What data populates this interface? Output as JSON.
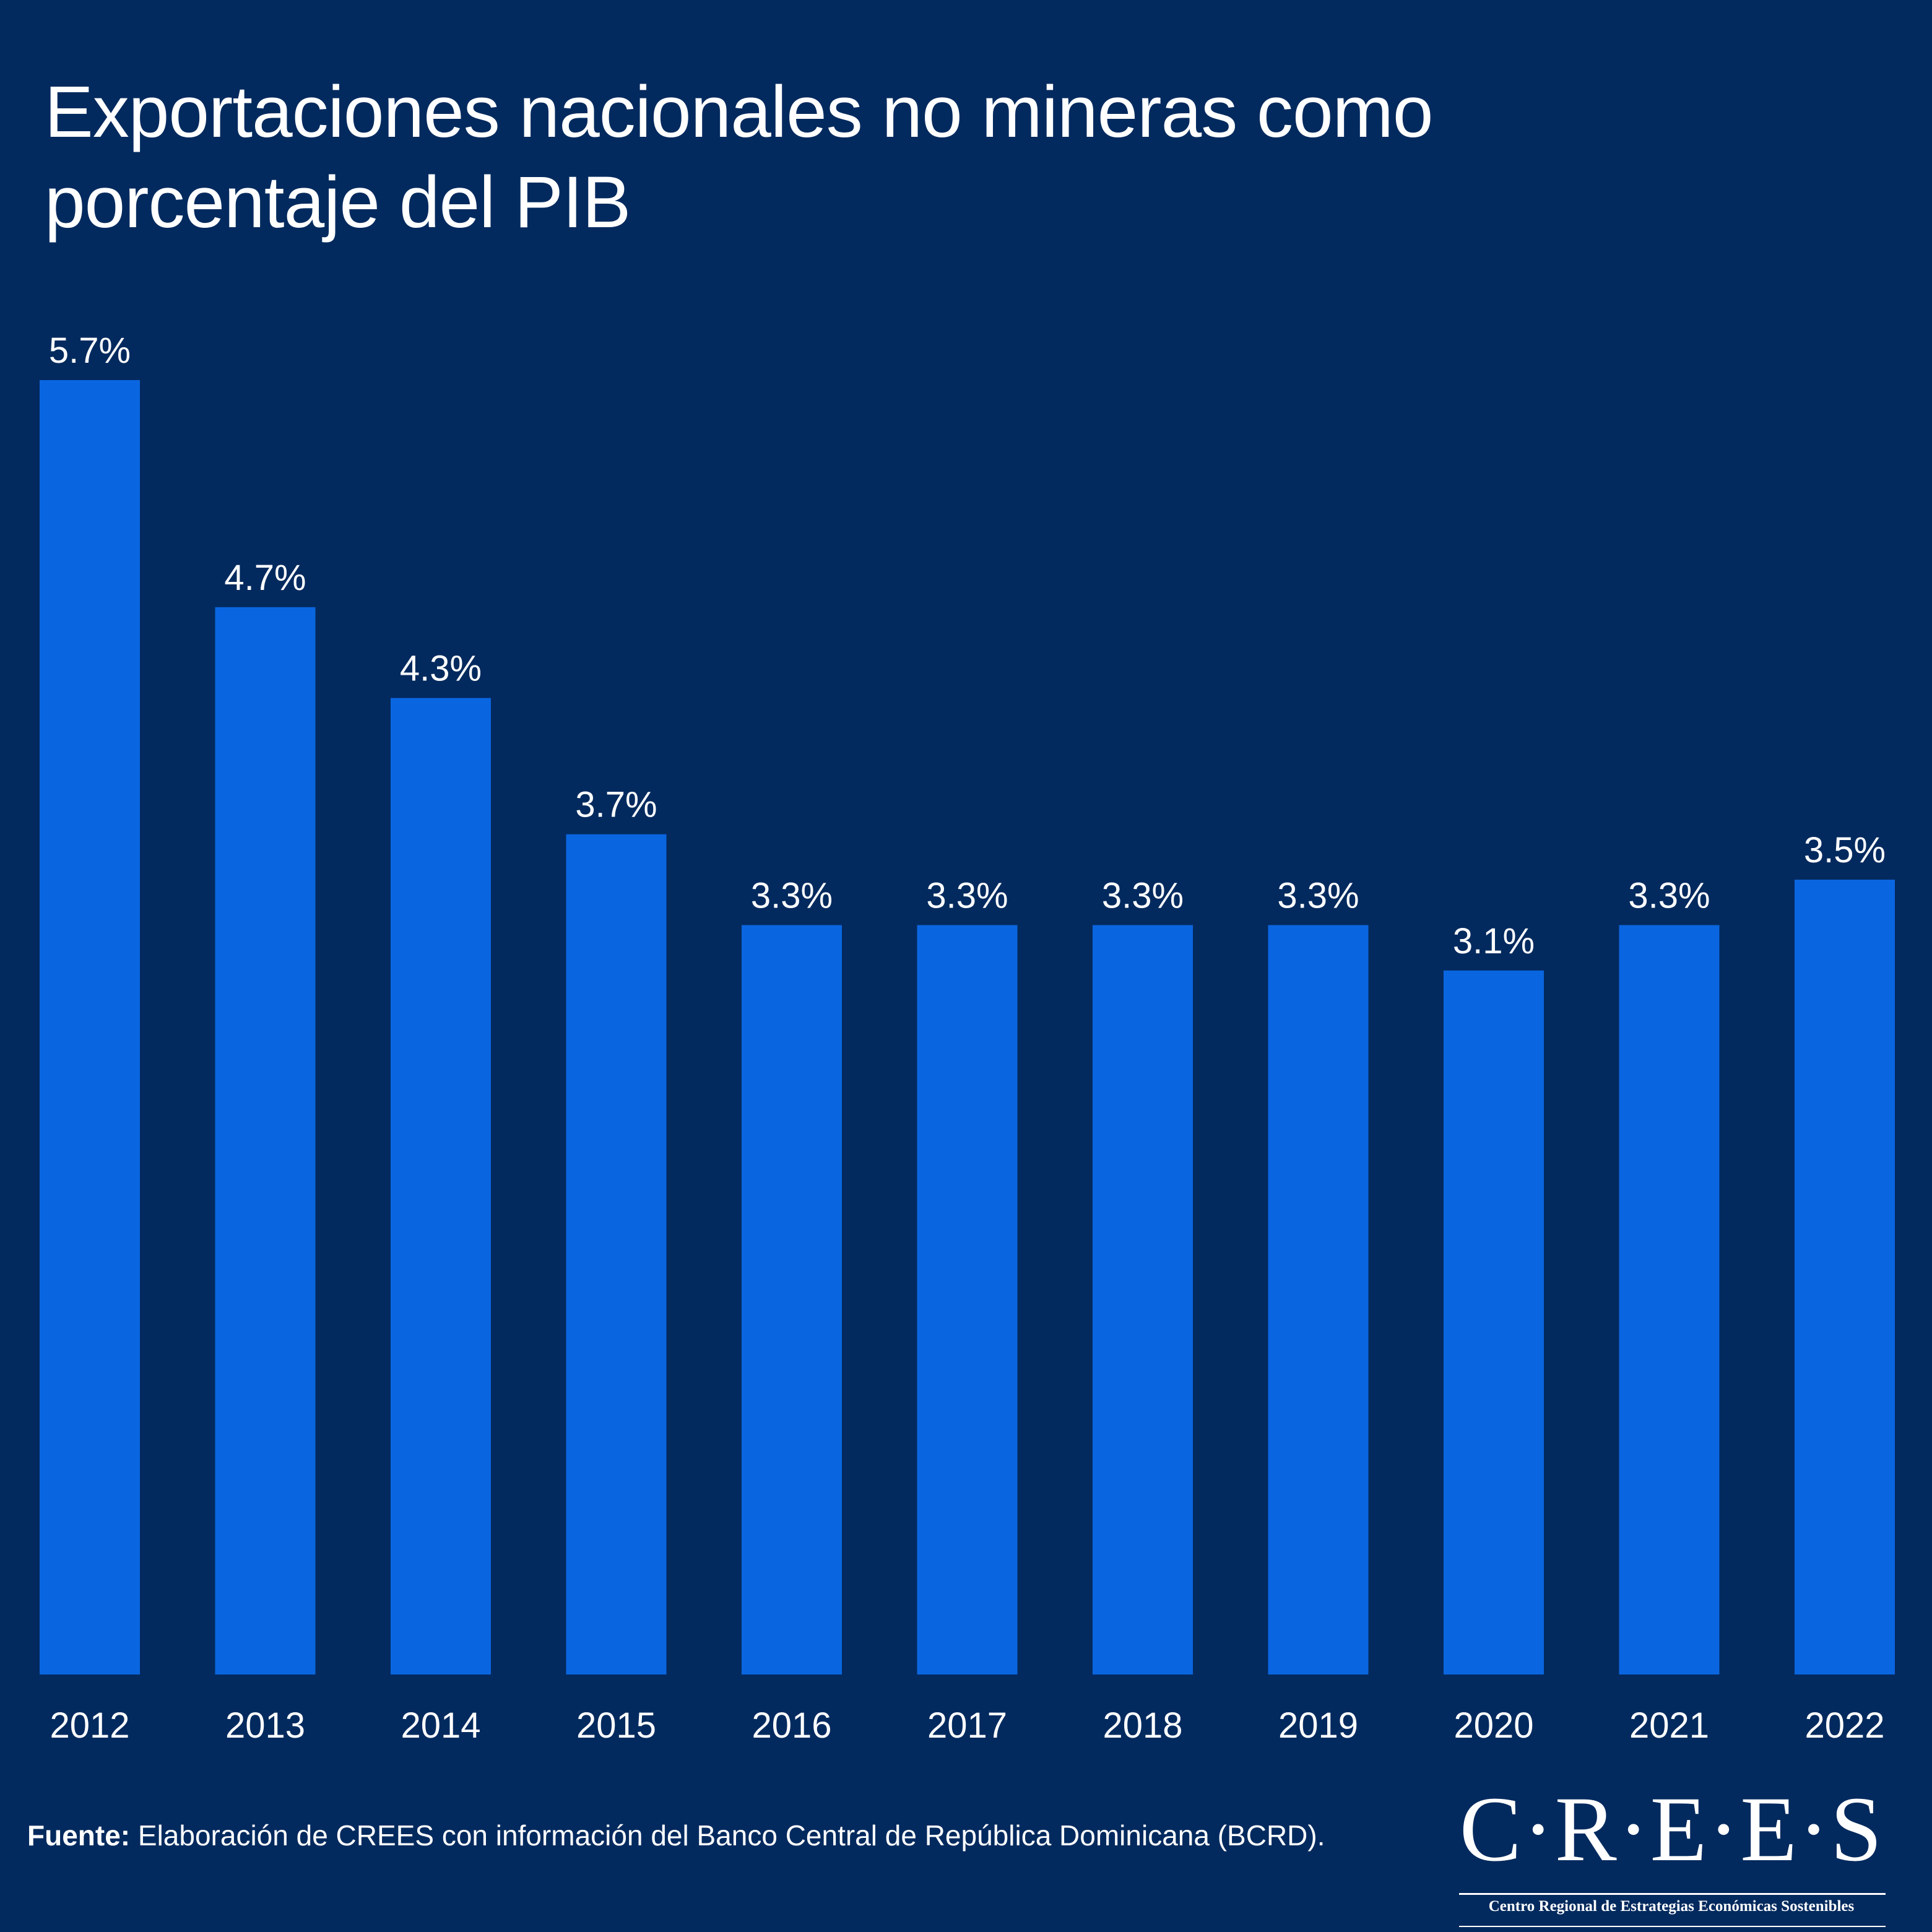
{
  "colors": {
    "background": "#032a5e",
    "bar": "#0a66e0",
    "text": "#ffffff"
  },
  "source": {
    "prefix": "Fuente:",
    "text": " Elaboración de CREES con información del Banco Central de República Dominicana (BCRD)."
  },
  "logo": {
    "mark": "C·R·E·E·S",
    "subtitle": "Centro Regional de Estrategias Económicas Sostenibles"
  },
  "chart_data": {
    "type": "bar",
    "title": "Exportaciones nacionales no mineras como porcentaje del PIB",
    "xlabel": "",
    "ylabel": "",
    "ylim": [
      0,
      5.7
    ],
    "grid": false,
    "legend": "none",
    "categories": [
      "2012",
      "2013",
      "2014",
      "2015",
      "2016",
      "2017",
      "2018",
      "2019",
      "2020",
      "2021",
      "2022"
    ],
    "values": [
      5.7,
      4.7,
      4.3,
      3.7,
      3.3,
      3.3,
      3.3,
      3.3,
      3.1,
      3.3,
      3.5
    ],
    "data_labels": [
      "5.7%",
      "4.7%",
      "4.3%",
      "3.7%",
      "3.3%",
      "3.3%",
      "3.3%",
      "3.3%",
      "3.1%",
      "3.3%",
      "3.5%"
    ],
    "unit": "%"
  }
}
